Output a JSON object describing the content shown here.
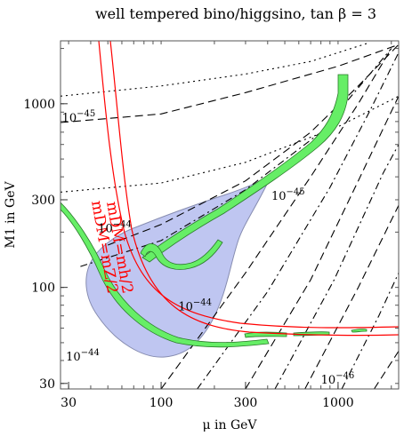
{
  "chart_data": {
    "type": "line",
    "title": "well tempered bino/higgsino, tan β = 3",
    "xlabel": "μ in GeV",
    "ylabel": "M1 in GeV",
    "xscale": "log",
    "yscale": "log",
    "xlim": [
      27,
      2200
    ],
    "ylim": [
      28,
      2200
    ],
    "x_ticks": [
      30,
      100,
      300,
      1000
    ],
    "y_ticks": [
      30,
      100,
      300,
      1000
    ],
    "x_tick_labels": [
      "30",
      "100",
      "300",
      "1000"
    ],
    "y_tick_labels": [
      "30",
      "100",
      "300",
      "1000"
    ],
    "grid": false,
    "region_color": "#b9c0f0",
    "band_color": "#66ee66",
    "annotations": [
      {
        "text": "10−45",
        "x": 27.5,
        "y": 800
      },
      {
        "text": "10−45",
        "x": 420,
        "y": 300
      },
      {
        "text": "10−44",
        "x": 44,
        "y": 200
      },
      {
        "text": "10−44",
        "x": 125,
        "y": 75
      },
      {
        "text": "10−44",
        "x": 29,
        "y": 40
      },
      {
        "text": "10−46",
        "x": 800,
        "y": 30
      }
    ],
    "red_labels": [
      {
        "text": "mDM=mh/2",
        "angle": 80
      },
      {
        "text": "mDM=mZ/2",
        "angle": 80
      }
    ],
    "series": [
      {
        "style": "dash",
        "points": [
          [
            27,
            790
          ],
          [
            100,
            880
          ],
          [
            300,
            1150
          ],
          [
            1000,
            1600
          ],
          [
            2200,
            2100
          ]
        ]
      },
      {
        "style": "dot",
        "points": [
          [
            27,
            1100
          ],
          [
            100,
            1250
          ],
          [
            300,
            1450
          ],
          [
            700,
            1700
          ],
          [
            1500,
            2150
          ]
        ]
      },
      {
        "style": "dot",
        "points": [
          [
            27,
            330
          ],
          [
            100,
            370
          ],
          [
            300,
            480
          ],
          [
            1000,
            750
          ],
          [
            2200,
            1100
          ]
        ]
      },
      {
        "style": "dash",
        "points": [
          [
            50,
            170
          ],
          [
            100,
            220
          ],
          [
            300,
            380
          ],
          [
            700,
            700
          ],
          [
            1300,
            1250
          ],
          [
            2200,
            2100
          ]
        ]
      },
      {
        "style": "dotdash",
        "points": [
          [
            35,
            130
          ],
          [
            100,
            180
          ],
          [
            300,
            340
          ],
          [
            800,
            700
          ],
          [
            2000,
            2000
          ]
        ]
      },
      {
        "style": "dash",
        "points": [
          [
            100,
            28
          ],
          [
            300,
            120
          ],
          [
            700,
            400
          ],
          [
            1300,
            1000
          ],
          [
            2000,
            2000
          ]
        ]
      },
      {
        "style": "dotdash",
        "points": [
          [
            160,
            28
          ],
          [
            400,
            95
          ],
          [
            900,
            350
          ],
          [
            1500,
            900
          ],
          [
            2200,
            1900
          ]
        ]
      },
      {
        "style": "dash",
        "points": [
          [
            300,
            28
          ],
          [
            700,
            110
          ],
          [
            1300,
            380
          ],
          [
            2200,
            1100
          ]
        ]
      },
      {
        "style": "dotdash",
        "points": [
          [
            440,
            28
          ],
          [
            950,
            110
          ],
          [
            1800,
            420
          ],
          [
            2200,
            600
          ]
        ]
      },
      {
        "style": "dash",
        "points": [
          [
            650,
            28
          ],
          [
            1300,
            100
          ],
          [
            2200,
            280
          ]
        ]
      },
      {
        "style": "dotdash",
        "points": [
          [
            1050,
            28
          ],
          [
            1700,
            70
          ],
          [
            2200,
            120
          ]
        ]
      },
      {
        "style": "dash",
        "points": [
          [
            1600,
            28
          ],
          [
            2200,
            45
          ]
        ]
      }
    ]
  }
}
